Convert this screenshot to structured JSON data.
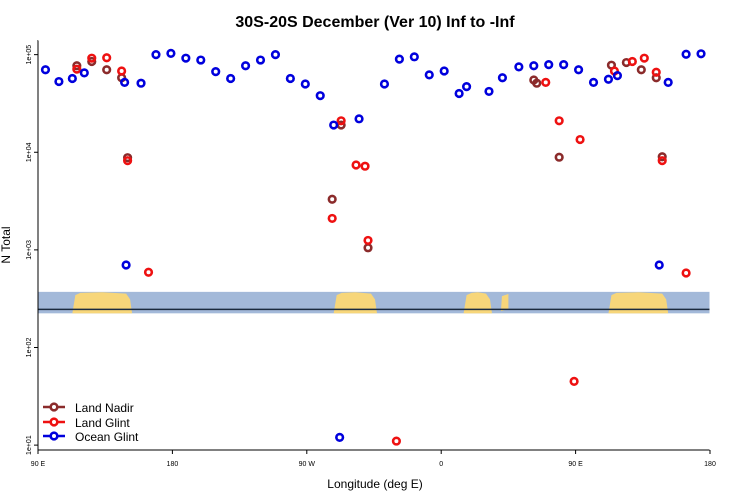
{
  "chart_data": {
    "type": "scatter",
    "title": "30S-20S December (Ver 10)   Inf to -Inf",
    "xlabel": "Longitude (deg E)",
    "ylabel": "N Total",
    "y_scale": "log10",
    "ylim_log10": [
      0.95,
      5.15
    ],
    "xlim": [
      90,
      540
    ],
    "x_ticks": [
      {
        "value": 90,
        "label": "90 E"
      },
      {
        "value": 180,
        "label": "180"
      },
      {
        "value": 270,
        "label": "90 W"
      },
      {
        "value": 360,
        "label": "0"
      },
      {
        "value": 450,
        "label": "90 E"
      },
      {
        "value": 540,
        "label": "180"
      }
    ],
    "y_ticks": [
      {
        "value": 10,
        "label": "1e+01"
      },
      {
        "value": 100,
        "label": "1e+02"
      },
      {
        "value": 1000,
        "label": "1e+03"
      },
      {
        "value": 10000,
        "label": "1e+04"
      },
      {
        "value": 100000,
        "label": "1e+05"
      }
    ],
    "map_strip": {
      "log10_bottom": 2.35,
      "log10_top": 2.57,
      "log10_line": 2.39,
      "ocean_color": "#a3b9d9",
      "land_color": "#f7d67a",
      "line_color": "#1b2b3f"
    },
    "series": [
      {
        "name": "Land Nadir",
        "color": "#8b2b2b",
        "points": [
          [
            116,
            77000
          ],
          [
            126,
            85000
          ],
          [
            136,
            70000
          ],
          [
            146,
            58000
          ],
          [
            150,
            8800
          ],
          [
            287,
            3300
          ],
          [
            293,
            19000
          ],
          [
            311,
            1050
          ],
          [
            424,
            51000
          ],
          [
            422,
            55000
          ],
          [
            439,
            8900
          ],
          [
            474,
            78000
          ],
          [
            484,
            83000
          ],
          [
            494,
            70000
          ],
          [
            504,
            58000
          ],
          [
            508,
            9000
          ]
        ]
      },
      {
        "name": "Land Glint",
        "color": "#ee1111",
        "points": [
          [
            116,
            71000
          ],
          [
            126,
            92000
          ],
          [
            136,
            93000
          ],
          [
            146,
            68000
          ],
          [
            150,
            8200
          ],
          [
            164,
            590
          ],
          [
            287,
            2100
          ],
          [
            293,
            21000
          ],
          [
            303,
            7400
          ],
          [
            309,
            7200
          ],
          [
            311,
            1250
          ],
          [
            330,
            11
          ],
          [
            476,
            68000
          ],
          [
            488,
            85000
          ],
          [
            496,
            92000
          ],
          [
            504,
            66000
          ],
          [
            508,
            8200
          ],
          [
            524,
            580
          ],
          [
            430,
            52000
          ],
          [
            439,
            21000
          ],
          [
            453,
            13500
          ],
          [
            449,
            45
          ]
        ]
      },
      {
        "name": "Ocean Glint",
        "color": "#0000dd",
        "points": [
          [
            95,
            70000
          ],
          [
            104,
            53000
          ],
          [
            113,
            57000
          ],
          [
            121,
            65000
          ],
          [
            148,
            52000
          ],
          [
            149,
            700
          ],
          [
            159,
            51000
          ],
          [
            169,
            100000
          ],
          [
            179,
            103000
          ],
          [
            189,
            92000
          ],
          [
            199,
            88000
          ],
          [
            209,
            67000
          ],
          [
            219,
            57000
          ],
          [
            229,
            77000
          ],
          [
            239,
            88000
          ],
          [
            249,
            100000
          ],
          [
            259,
            57000
          ],
          [
            269,
            50000
          ],
          [
            279,
            38000
          ],
          [
            288,
            19000
          ],
          [
            292,
            12
          ],
          [
            305,
            22000
          ],
          [
            322,
            50000
          ],
          [
            332,
            90000
          ],
          [
            342,
            95000
          ],
          [
            352,
            62000
          ],
          [
            362,
            68000
          ],
          [
            372,
            40000
          ],
          [
            377,
            47000
          ],
          [
            392,
            42000
          ],
          [
            401,
            58000
          ],
          [
            412,
            75000
          ],
          [
            422,
            77000
          ],
          [
            432,
            79000
          ],
          [
            442,
            79000
          ],
          [
            452,
            70000
          ],
          [
            462,
            52000
          ],
          [
            472,
            56000
          ],
          [
            478,
            61000
          ],
          [
            506,
            700
          ],
          [
            512,
            52000
          ],
          [
            524,
            101000
          ],
          [
            534,
            102000
          ]
        ]
      }
    ],
    "legend": {
      "position": "bottom-left",
      "entries": [
        "Land Nadir",
        "Land Glint",
        "Ocean Glint"
      ]
    }
  }
}
